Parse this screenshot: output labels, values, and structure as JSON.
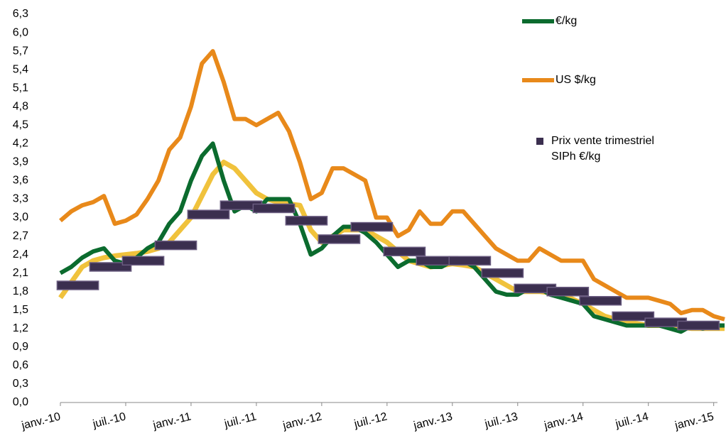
{
  "chart_data": {
    "type": "line",
    "x": [
      "2010-01",
      "2010-02",
      "2010-03",
      "2010-04",
      "2010-05",
      "2010-06",
      "2010-07",
      "2010-08",
      "2010-09",
      "2010-10",
      "2010-11",
      "2010-12",
      "2011-01",
      "2011-02",
      "2011-03",
      "2011-04",
      "2011-05",
      "2011-06",
      "2011-07",
      "2011-08",
      "2011-09",
      "2011-10",
      "2011-11",
      "2011-12",
      "2012-01",
      "2012-02",
      "2012-03",
      "2012-04",
      "2012-05",
      "2012-06",
      "2012-07",
      "2012-08",
      "2012-09",
      "2012-10",
      "2012-11",
      "2012-12",
      "2013-01",
      "2013-02",
      "2013-03",
      "2013-04",
      "2013-05",
      "2013-06",
      "2013-07",
      "2013-08",
      "2013-09",
      "2013-10",
      "2013-11",
      "2013-12",
      "2014-01",
      "2014-02",
      "2014-03",
      "2014-04",
      "2014-05",
      "2014-06",
      "2014-07",
      "2014-08",
      "2014-09",
      "2014-10",
      "2014-11",
      "2014-12",
      "2015-01",
      "2015-02"
    ],
    "series": [
      {
        "color": "#f0c23c",
        "values": [
          1.7,
          1.95,
          2.2,
          2.3,
          2.35,
          2.38,
          2.4,
          2.42,
          2.45,
          2.5,
          2.6,
          2.8,
          3.0,
          3.35,
          3.7,
          3.9,
          3.8,
          3.6,
          3.4,
          3.3,
          3.25,
          3.22,
          3.2,
          2.8,
          2.6,
          2.7,
          2.8,
          2.8,
          2.8,
          2.7,
          2.6,
          2.45,
          2.3,
          2.25,
          2.2,
          2.22,
          2.25,
          2.23,
          2.2,
          2.1,
          2.0,
          1.9,
          1.8,
          1.8,
          1.8,
          1.78,
          1.75,
          1.68,
          1.6,
          1.5,
          1.4,
          1.35,
          1.3,
          1.28,
          1.25,
          1.25,
          1.25,
          1.22,
          1.2,
          1.2,
          1.2,
          1.2
        ]
      },
      {
        "name": "€/kg",
        "color": "#0b6b2e",
        "values": [
          2.1,
          2.2,
          2.35,
          2.45,
          2.5,
          2.3,
          2.25,
          2.35,
          2.5,
          2.6,
          2.9,
          3.1,
          3.6,
          4.0,
          4.2,
          3.6,
          3.1,
          3.2,
          3.1,
          3.3,
          3.3,
          3.3,
          2.9,
          2.4,
          2.5,
          2.7,
          2.85,
          2.85,
          2.75,
          2.6,
          2.4,
          2.2,
          2.3,
          2.3,
          2.2,
          2.2,
          2.3,
          2.3,
          2.2,
          2.0,
          1.8,
          1.75,
          1.75,
          1.85,
          1.85,
          1.75,
          1.7,
          1.65,
          1.6,
          1.4,
          1.35,
          1.3,
          1.25,
          1.25,
          1.25,
          1.25,
          1.2,
          1.15,
          1.25,
          1.2,
          1.25,
          1.25
        ]
      },
      {
        "name": "US $/kg",
        "color": "#e8891a",
        "values": [
          2.95,
          3.1,
          3.2,
          3.25,
          3.35,
          2.9,
          2.95,
          3.05,
          3.3,
          3.6,
          4.1,
          4.3,
          4.8,
          5.5,
          5.7,
          5.2,
          4.6,
          4.6,
          4.5,
          4.6,
          4.7,
          4.4,
          3.9,
          3.3,
          3.4,
          3.8,
          3.8,
          3.7,
          3.6,
          3.0,
          3.0,
          2.7,
          2.8,
          3.1,
          2.9,
          2.9,
          3.1,
          3.1,
          2.9,
          2.7,
          2.5,
          2.4,
          2.3,
          2.3,
          2.5,
          2.4,
          2.3,
          2.3,
          2.3,
          2.0,
          1.9,
          1.8,
          1.7,
          1.7,
          1.7,
          1.65,
          1.6,
          1.45,
          1.5,
          1.5,
          1.4,
          1.35
        ]
      },
      {
        "name": "Prix vente trimestriel SIPh €/kg",
        "color": "#3b2f4f",
        "marker": "bar",
        "x": [
          "2010-01",
          "2010-04",
          "2010-07",
          "2010-10",
          "2011-01",
          "2011-04",
          "2011-07",
          "2011-10",
          "2012-01",
          "2012-04",
          "2012-07",
          "2012-10",
          "2013-01",
          "2013-04",
          "2013-07",
          "2013-10",
          "2014-01",
          "2014-04",
          "2014-07",
          "2014-10"
        ],
        "values": [
          1.9,
          2.2,
          2.3,
          2.55,
          3.05,
          3.2,
          3.15,
          2.95,
          2.65,
          2.85,
          2.45,
          2.3,
          2.3,
          2.1,
          1.85,
          1.8,
          1.65,
          1.4,
          1.3,
          1.25
        ]
      }
    ],
    "xlim": [
      "2010-01",
      "2015-02"
    ],
    "xticks": [
      {
        "value": "2010-01",
        "label": "janv.-10"
      },
      {
        "value": "2010-07",
        "label": "juil.-10"
      },
      {
        "value": "2011-01",
        "label": "janv.-11"
      },
      {
        "value": "2011-07",
        "label": "juil.-11"
      },
      {
        "value": "2012-01",
        "label": "janv.-12"
      },
      {
        "value": "2012-07",
        "label": "juil.-12"
      },
      {
        "value": "2013-01",
        "label": "janv.-13"
      },
      {
        "value": "2013-07",
        "label": "juil.-13"
      },
      {
        "value": "2014-01",
        "label": "janv.-14"
      },
      {
        "value": "2014-07",
        "label": "juil.-14"
      },
      {
        "value": "2015-01",
        "label": "janv.-15"
      }
    ],
    "ylim": [
      0,
      6.3
    ],
    "yticks": [
      {
        "value": 0,
        "label": "0,0"
      },
      {
        "value": 0.3,
        "label": "0,3"
      },
      {
        "value": 0.6,
        "label": "0,6"
      },
      {
        "value": 0.9,
        "label": "0,9"
      },
      {
        "value": 1.2,
        "label": "1,2"
      },
      {
        "value": 1.5,
        "label": "1,5"
      },
      {
        "value": 1.8,
        "label": "1,8"
      },
      {
        "value": 2.1,
        "label": "2,1"
      },
      {
        "value": 2.4,
        "label": "2,4"
      },
      {
        "value": 2.7,
        "label": "2,7"
      },
      {
        "value": 3.0,
        "label": "3,0"
      },
      {
        "value": 3.3,
        "label": "3,3"
      },
      {
        "value": 3.6,
        "label": "3,6"
      },
      {
        "value": 3.9,
        "label": "3,9"
      },
      {
        "value": 4.2,
        "label": "4,2"
      },
      {
        "value": 4.5,
        "label": "4,5"
      },
      {
        "value": 4.8,
        "label": "4,8"
      },
      {
        "value": 5.1,
        "label": "5,1"
      },
      {
        "value": 5.4,
        "label": "5,4"
      },
      {
        "value": 5.7,
        "label": "5,7"
      },
      {
        "value": 6.0,
        "label": "6,0"
      },
      {
        "value": 6.3,
        "label": "6,3"
      }
    ],
    "grid": false
  }
}
